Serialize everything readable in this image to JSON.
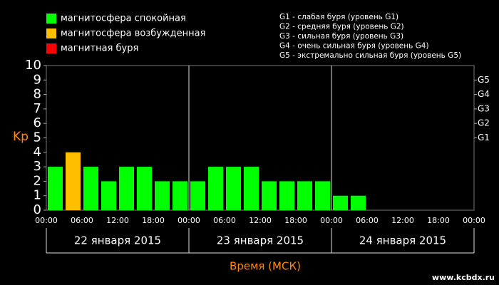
{
  "chart_data": {
    "type": "bar",
    "x": [
      0,
      3,
      6,
      9,
      12,
      15,
      18,
      21,
      24,
      27,
      30,
      33,
      36,
      39,
      42,
      45,
      48,
      51,
      54,
      57,
      60,
      63,
      66,
      69
    ],
    "values": [
      3,
      4,
      3,
      2,
      3,
      3,
      2,
      2,
      2,
      3,
      3,
      3,
      2,
      2,
      2,
      2,
      1,
      1,
      null,
      null,
      null,
      null,
      null,
      null
    ],
    "colors": [
      "#00ff00",
      "#ffbf00",
      "#00ff00",
      "#00ff00",
      "#00ff00",
      "#00ff00",
      "#00ff00",
      "#00ff00",
      "#00ff00",
      "#00ff00",
      "#00ff00",
      "#00ff00",
      "#00ff00",
      "#00ff00",
      "#00ff00",
      "#00ff00",
      "#00ff00",
      "#00ff00",
      null,
      null,
      null,
      null,
      null,
      null
    ],
    "xlim": [
      0,
      72
    ],
    "xticks": [
      {
        "value": 0,
        "label": "00:00"
      },
      {
        "value": 6,
        "label": "06:00"
      },
      {
        "value": 12,
        "label": "12:00"
      },
      {
        "value": 18,
        "label": "18:00"
      },
      {
        "value": 24,
        "label": "00:00"
      },
      {
        "value": 30,
        "label": "06:00"
      },
      {
        "value": 36,
        "label": "12:00"
      },
      {
        "value": 42,
        "label": "18:00"
      },
      {
        "value": 48,
        "label": "00:00"
      },
      {
        "value": 54,
        "label": "06:00"
      },
      {
        "value": 60,
        "label": "12:00"
      },
      {
        "value": 66,
        "label": "18:00"
      },
      {
        "value": 72,
        "label": "00:00"
      }
    ],
    "ylim": [
      0,
      10
    ],
    "yticks": [
      0,
      1,
      2,
      3,
      4,
      5,
      6,
      7,
      8,
      9,
      10
    ],
    "y2ticks": [
      {
        "value": 5,
        "label": "G1"
      },
      {
        "value": 6,
        "label": "G2"
      },
      {
        "value": 7,
        "label": "G3"
      },
      {
        "value": 8,
        "label": "G4"
      },
      {
        "value": 9,
        "label": "G5"
      }
    ],
    "y_label": "Kp",
    "x_label": "Время (МСК)",
    "days": [
      "22 января 2015",
      "23 января 2015",
      "24 января 2015"
    ],
    "legend": [
      {
        "label": "магнитосфера спокойная",
        "color": "#00ff00"
      },
      {
        "label": "магнитосфера возбужденная",
        "color": "#ffbf00"
      },
      {
        "label": "магнитная буря",
        "color": "#ff0000"
      }
    ],
    "storm_levels": [
      "G1 - слабая буря (уровень G1)",
      "G2 - средняя буря (уровень G2)",
      "G3 - сильная буря (уровень G3)",
      "G4 - очень сильная буря (уровень G4)",
      "G5 - экстремально сильная буря (уровень G5)"
    ],
    "watermark": "www.kcbdx.ru"
  }
}
